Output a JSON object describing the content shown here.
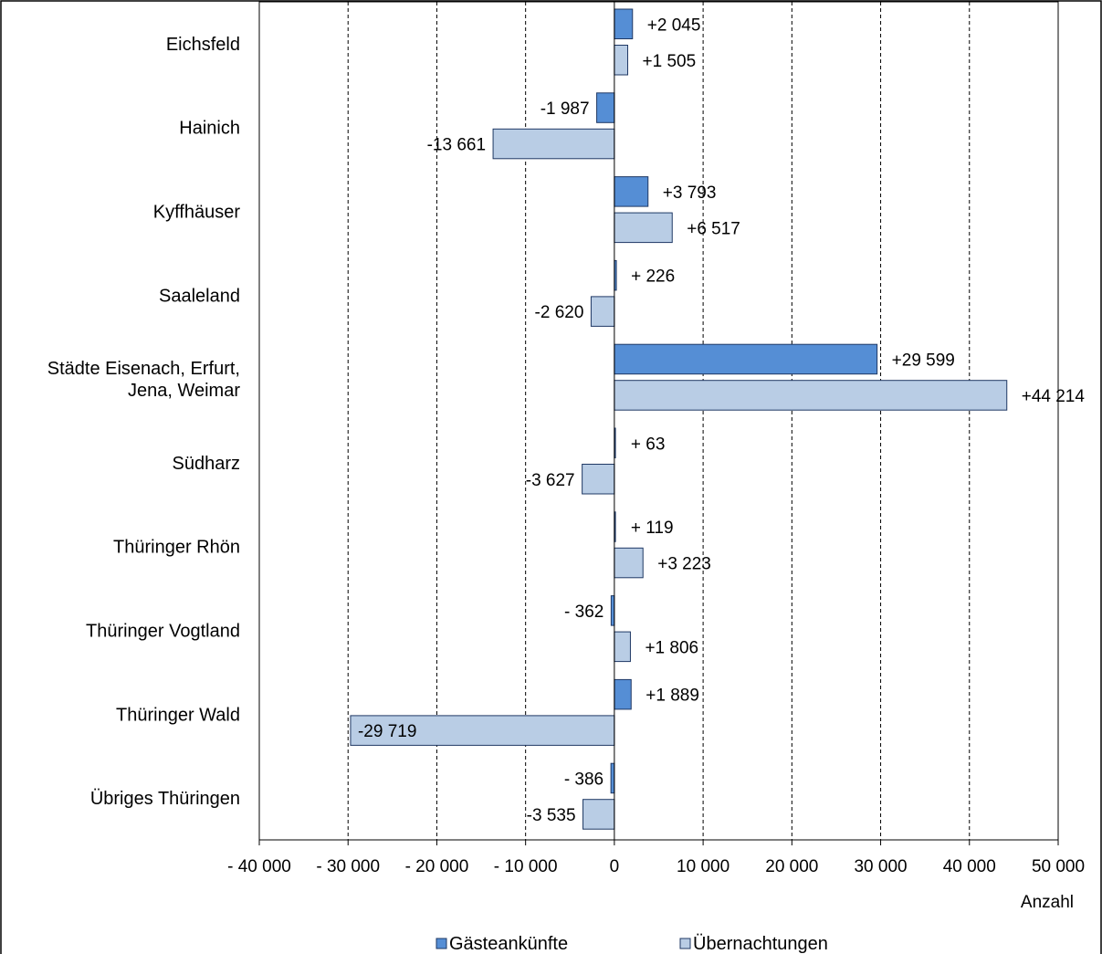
{
  "chart_data": {
    "type": "bar",
    "orientation": "horizontal",
    "categories": [
      "Eichsfeld",
      "Hainich",
      "Kyffhäuser",
      "Saaleland",
      "Städte Eisenach, Erfurt, Jena, Weimar",
      "Südharz",
      "Thüringer Rhön",
      "Thüringer Vogtland",
      "Thüringer Wald",
      "Übriges Thüringen"
    ],
    "category_lines": [
      [
        "Eichsfeld"
      ],
      [
        "Hainich"
      ],
      [
        "Kyffhäuser"
      ],
      [
        "Saaleland"
      ],
      [
        "Städte Eisenach, Erfurt,",
        "Jena, Weimar"
      ],
      [
        "Südharz"
      ],
      [
        "Thüringer Rhön"
      ],
      [
        "Thüringer Vogtland"
      ],
      [
        "Thüringer Wald"
      ],
      [
        "Übriges Thüringen"
      ]
    ],
    "series": [
      {
        "name": "Gästeankünfte",
        "color": "#558ed5",
        "values": [
          2045,
          -1987,
          3793,
          226,
          29599,
          63,
          119,
          -362,
          1889,
          -386
        ],
        "labels": [
          "+2 045",
          "-1 987",
          "+3 793",
          "+ 226",
          "+29 599",
          "+ 63",
          "+ 119",
          "- 362",
          "+1 889",
          "- 386"
        ]
      },
      {
        "name": "Übernachtungen",
        "color": "#b9cde5",
        "values": [
          1505,
          -13661,
          6517,
          -2620,
          44214,
          -3627,
          3223,
          1806,
          -29719,
          -3535
        ],
        "labels": [
          "+1 505",
          "-13 661",
          "+6 517",
          "-2 620",
          "+44 214",
          "-3 627",
          "+3 223",
          "+1 806",
          "-29 719",
          "-3 535"
        ]
      }
    ],
    "xlim": [
      -40000,
      50000
    ],
    "xticks": [
      -40000,
      -30000,
      -20000,
      -10000,
      0,
      10000,
      20000,
      30000,
      40000,
      50000
    ],
    "xtick_labels": [
      "- 40 000",
      "- 30 000",
      "- 20 000",
      "- 10 000",
      "0",
      "10 000",
      "20 000",
      "30 000",
      "40 000",
      "50 000"
    ],
    "xlabel": "Anzahl",
    "ylabel": "",
    "title": "",
    "grid": "vertical dashed",
    "legend": "bottom"
  }
}
